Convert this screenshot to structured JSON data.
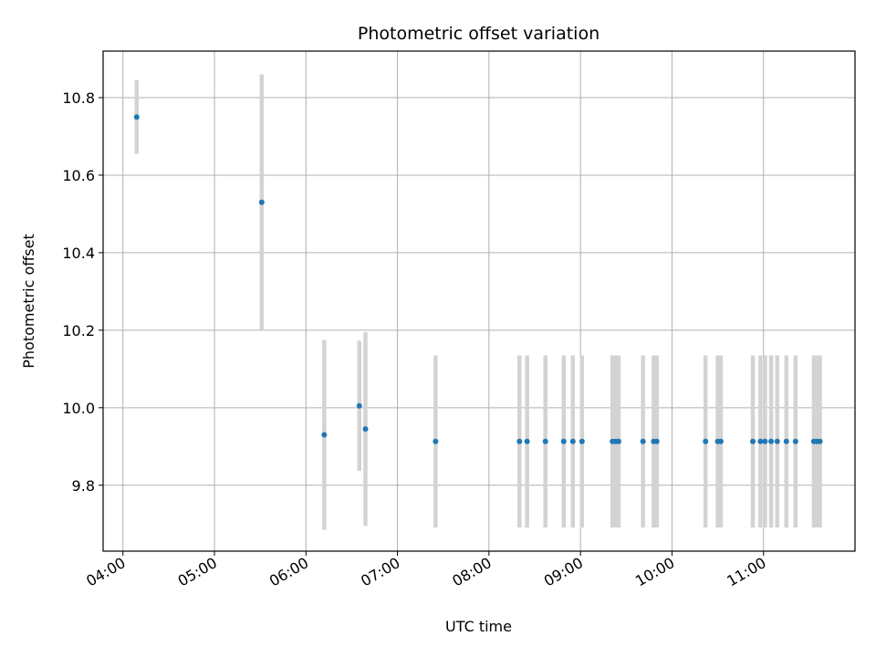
{
  "chart_data": {
    "type": "scatter",
    "title": "Photometric offset variation",
    "xlabel": "UTC time",
    "ylabel": "Photometric offset",
    "x_unit": "hours UTC",
    "xlim": [
      "03:47",
      "12:00"
    ],
    "ylim": [
      9.63,
      10.92
    ],
    "x_ticks": [
      "04:00",
      "05:00",
      "06:00",
      "07:00",
      "08:00",
      "09:00",
      "10:00",
      "11:00"
    ],
    "y_ticks": [
      9.8,
      10.0,
      10.2,
      10.4,
      10.6,
      10.8
    ],
    "grid": true,
    "colors": {
      "point": "#1f77b4",
      "errorbar": "#d3d3d3",
      "grid": "#b0b0b0"
    },
    "points": [
      {
        "x": "04:09",
        "y": 10.75,
        "err": 0.095
      },
      {
        "x": "05:31",
        "y": 10.53,
        "err": 0.33
      },
      {
        "x": "06:12",
        "y": 9.93,
        "err": 0.245
      },
      {
        "x": "06:35",
        "y": 10.005,
        "err": 0.168
      },
      {
        "x": "06:39",
        "y": 9.945,
        "err": 0.25
      },
      {
        "x": "07:25",
        "y": 9.913,
        "err": 0.222
      },
      {
        "x": "08:20",
        "y": 9.913,
        "err": 0.222
      },
      {
        "x": "08:25",
        "y": 9.913,
        "err": 0.222
      },
      {
        "x": "08:37",
        "y": 9.913,
        "err": 0.222
      },
      {
        "x": "08:49",
        "y": 9.913,
        "err": 0.222
      },
      {
        "x": "08:55",
        "y": 9.913,
        "err": 0.222
      },
      {
        "x": "09:01",
        "y": 9.913,
        "err": 0.222
      },
      {
        "x": "09:21",
        "y": 9.913,
        "err": 0.222
      },
      {
        "x": "09:23",
        "y": 9.913,
        "err": 0.222
      },
      {
        "x": "09:25",
        "y": 9.913,
        "err": 0.222
      },
      {
        "x": "09:41",
        "y": 9.913,
        "err": 0.222
      },
      {
        "x": "09:48",
        "y": 9.913,
        "err": 0.222
      },
      {
        "x": "09:50",
        "y": 9.913,
        "err": 0.222
      },
      {
        "x": "10:22",
        "y": 9.913,
        "err": 0.222
      },
      {
        "x": "10:30",
        "y": 9.913,
        "err": 0.222
      },
      {
        "x": "10:32",
        "y": 9.913,
        "err": 0.222
      },
      {
        "x": "10:53",
        "y": 9.913,
        "err": 0.222
      },
      {
        "x": "10:58",
        "y": 9.913,
        "err": 0.222
      },
      {
        "x": "11:01",
        "y": 9.913,
        "err": 0.222
      },
      {
        "x": "11:05",
        "y": 9.913,
        "err": 0.222
      },
      {
        "x": "11:09",
        "y": 9.913,
        "err": 0.222
      },
      {
        "x": "11:15",
        "y": 9.913,
        "err": 0.222
      },
      {
        "x": "11:21",
        "y": 9.913,
        "err": 0.222
      },
      {
        "x": "11:33",
        "y": 9.913,
        "err": 0.222
      },
      {
        "x": "11:35",
        "y": 9.913,
        "err": 0.222
      },
      {
        "x": "11:37",
        "y": 9.913,
        "err": 0.222
      }
    ]
  }
}
